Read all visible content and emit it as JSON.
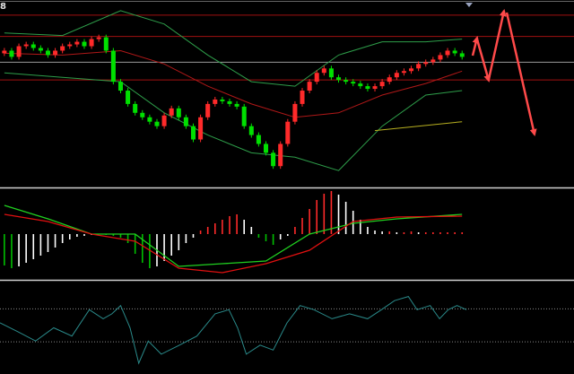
{
  "chart_data": [
    {
      "type": "candlestick",
      "header": "8",
      "xlim": [
        -0.6,
        78.4
      ],
      "ylim": [
        0,
        208
      ],
      "up_color": "#ff2a2a",
      "down_color": "#00e000",
      "open": [
        150,
        153,
        146,
        158,
        160,
        156,
        153,
        148,
        153,
        158,
        160,
        163,
        158,
        166,
        168,
        153,
        118,
        108,
        93,
        83,
        78,
        73,
        68,
        80,
        88,
        78,
        68,
        53,
        78,
        93,
        98,
        96,
        93,
        90,
        68,
        58,
        48,
        38,
        23,
        48,
        73,
        93,
        108,
        118,
        128,
        133,
        123,
        120,
        118,
        116,
        113,
        110,
        113,
        118,
        123,
        128,
        130,
        133,
        138,
        140,
        143,
        148,
        153,
        150
      ],
      "high": [
        156,
        156,
        161,
        163,
        163,
        159,
        156,
        156,
        161,
        163,
        166,
        166,
        169,
        171,
        171,
        156,
        121,
        111,
        96,
        86,
        81,
        76,
        83,
        91,
        91,
        81,
        71,
        81,
        96,
        101,
        101,
        99,
        96,
        93,
        71,
        61,
        51,
        41,
        51,
        76,
        96,
        111,
        121,
        131,
        136,
        136,
        126,
        123,
        121,
        119,
        116,
        116,
        121,
        126,
        131,
        133,
        136,
        141,
        143,
        146,
        151,
        156,
        156,
        153
      ],
      "low": [
        147,
        143,
        143,
        155,
        153,
        150,
        145,
        145,
        150,
        155,
        157,
        155,
        155,
        163,
        150,
        115,
        105,
        90,
        80,
        75,
        70,
        65,
        65,
        77,
        75,
        65,
        50,
        50,
        75,
        90,
        93,
        90,
        87,
        65,
        55,
        45,
        35,
        20,
        20,
        45,
        70,
        90,
        105,
        115,
        125,
        120,
        117,
        115,
        113,
        110,
        107,
        107,
        110,
        115,
        120,
        125,
        127,
        130,
        135,
        137,
        140,
        145,
        147,
        143
      ],
      "close": [
        153,
        146,
        158,
        160,
        156,
        153,
        148,
        153,
        158,
        160,
        163,
        158,
        166,
        168,
        153,
        118,
        108,
        93,
        83,
        78,
        73,
        68,
        80,
        88,
        78,
        68,
        53,
        78,
        93,
        98,
        96,
        93,
        90,
        68,
        58,
        48,
        38,
        23,
        48,
        73,
        93,
        108,
        118,
        128,
        133,
        123,
        120,
        118,
        116,
        113,
        110,
        113,
        118,
        123,
        128,
        130,
        133,
        138,
        140,
        143,
        148,
        153,
        150,
        146
      ],
      "overlays": [
        {
          "color": "#2e9e4a",
          "x": [
            0,
            8,
            16,
            22,
            28,
            34,
            40,
            46,
            52,
            58,
            63
          ],
          "values": [
            173,
            170,
            198,
            183,
            148,
            118,
            113,
            148,
            163,
            163,
            166
          ]
        },
        {
          "color": "#b01818",
          "x": [
            0,
            8,
            16,
            22,
            28,
            34,
            40,
            46,
            52,
            58,
            63
          ],
          "values": [
            150,
            148,
            153,
            138,
            113,
            93,
            78,
            83,
            103,
            116,
            130
          ]
        },
        {
          "color": "#2e9e4a",
          "x": [
            0,
            8,
            16,
            22,
            28,
            34,
            40,
            46,
            52,
            58,
            63
          ],
          "values": [
            128,
            123,
            118,
            83,
            58,
            38,
            33,
            18,
            68,
            103,
            108
          ]
        },
        {
          "color": "#b8b020",
          "x": [
            51,
            63
          ],
          "values": [
            63,
            73
          ]
        }
      ],
      "hlines": [
        {
          "value": 193,
          "color": "#a01010"
        },
        {
          "value": 169,
          "color": "#a01010"
        },
        {
          "value": 140,
          "color": "#9a9a9a"
        },
        {
          "value": 120,
          "color": "#a01010"
        }
      ]
    },
    {
      "type": "macd",
      "xlim": [
        -0.6,
        78.4
      ],
      "ylim": [
        -50,
        50
      ],
      "colors": {
        "pos_up": "#ff2a2a",
        "pos_down": "#ffffff",
        "neg_down": "#00c000",
        "neg_up": "#ffffff"
      },
      "histogram": [
        -35,
        -38,
        -36,
        -32,
        -28,
        -24,
        -20,
        -15,
        -10,
        -6,
        -3,
        -2,
        -1,
        0,
        -1,
        -2,
        -4,
        -10,
        -22,
        -32,
        -38,
        -36,
        -30,
        -24,
        -18,
        -10,
        -4,
        4,
        8,
        12,
        16,
        20,
        22,
        16,
        8,
        -4,
        -8,
        -12,
        -6,
        -2,
        8,
        18,
        28,
        38,
        45,
        48,
        44,
        36,
        26,
        16,
        8,
        4,
        3,
        3,
        2,
        2,
        3,
        2,
        2,
        2,
        2,
        2,
        2,
        2
      ],
      "lines": [
        {
          "color": "#20d020",
          "x": [
            0,
            6,
            12,
            18,
            24,
            30,
            36,
            42,
            48,
            54,
            63
          ],
          "values": [
            32,
            17,
            0,
            0,
            -36,
            -33,
            -30,
            0,
            12,
            17,
            22
          ]
        },
        {
          "color": "#e01010",
          "x": [
            0,
            6,
            12,
            18,
            24,
            30,
            36,
            42,
            48,
            54,
            63
          ],
          "values": [
            22,
            14,
            0,
            -8,
            -38,
            -43,
            -33,
            -18,
            14,
            19,
            20
          ]
        }
      ]
    },
    {
      "type": "line",
      "xlim": [
        -0.6,
        78.4
      ],
      "ylim": [
        -9,
        103
      ],
      "color": "#2a8a8a",
      "levels": [
        70,
        30
      ],
      "x": [
        -0.6,
        1.9,
        4.3,
        6.8,
        9.3,
        11.7,
        13.6,
        14.8,
        16,
        17.3,
        18.5,
        19.8,
        21.6,
        24.1,
        26.5,
        29,
        30.9,
        32.1,
        33.3,
        35.2,
        37,
        38.9,
        40.7,
        42.6,
        45.1,
        47.5,
        50,
        51.9,
        53.7,
        55.6,
        56.8,
        58.6,
        59.9,
        61.1,
        62.3,
        63.6
      ],
      "values": [
        53,
        42,
        31,
        47,
        37,
        69,
        58,
        64,
        74,
        47,
        4,
        31,
        15,
        26,
        37,
        64,
        69,
        47,
        15,
        26,
        20,
        53,
        74,
        69,
        58,
        64,
        58,
        69,
        80,
        85,
        69,
        74,
        58,
        69,
        74,
        69
      ]
    }
  ]
}
